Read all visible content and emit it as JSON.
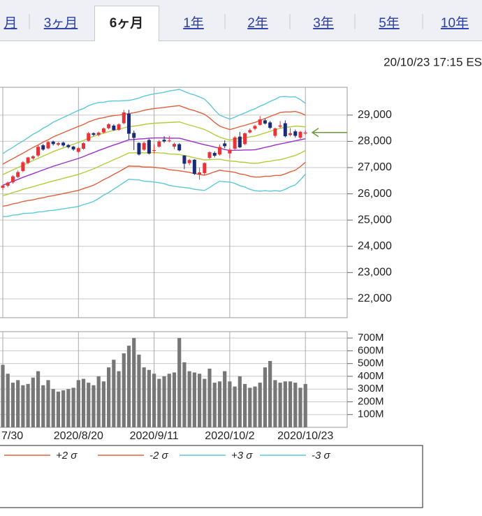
{
  "tabs": [
    "月",
    "3ヶ月",
    "6ヶ月",
    "1年",
    "2年",
    "3年",
    "5年",
    "10年"
  ],
  "selected_tab": 2,
  "timestamp": "20/10/23 17:15 ES",
  "chart_data": [
    {
      "type": "candlestick",
      "up_color": "#e8333a",
      "down_color": "#1a2b7a",
      "open": [
        26230,
        26310,
        26440,
        26640,
        26870,
        27180,
        27350,
        27460,
        27850,
        27730,
        27990,
        27870,
        27950,
        27860,
        27800,
        27600,
        27720,
        28020,
        28310,
        28240,
        28340,
        28500,
        28600,
        28440,
        28690,
        29050,
        28320,
        27940,
        27680,
        28050,
        27650,
        27800,
        28060,
        28010,
        27800,
        27890,
        27460,
        27170,
        27300,
        26730,
        26790,
        27370,
        27560,
        27500,
        27920,
        27540,
        27720,
        28180,
        27900,
        28340,
        28480,
        28630,
        28800,
        28720,
        28210,
        28560,
        28690,
        28240,
        28380,
        28140,
        28300
      ],
      "high": [
        26350,
        26470,
        26710,
        26890,
        27250,
        27410,
        27470,
        27850,
        27900,
        28010,
        28030,
        27970,
        27990,
        27900,
        27830,
        27780,
        27960,
        28360,
        28340,
        28370,
        28520,
        28690,
        28650,
        28690,
        29200,
        29200,
        28410,
        27960,
        27990,
        28100,
        27880,
        28050,
        28200,
        28210,
        27950,
        27930,
        27470,
        27330,
        27320,
        27000,
        27200,
        27620,
        27620,
        27880,
        28040,
        27750,
        28200,
        28360,
        28330,
        28490,
        28630,
        28960,
        28870,
        28780,
        28520,
        28770,
        28800,
        28500,
        28450,
        28400,
        28420
      ],
      "low": [
        26150,
        26250,
        26390,
        26600,
        26820,
        27130,
        27300,
        27410,
        27640,
        27700,
        27840,
        27820,
        27790,
        27730,
        27640,
        27560,
        27680,
        27990,
        28200,
        28190,
        28300,
        28460,
        28400,
        28400,
        28650,
        28070,
        27670,
        27460,
        27640,
        27500,
        27530,
        27760,
        27940,
        27960,
        27700,
        27620,
        26940,
        27090,
        26720,
        26540,
        26700,
        27330,
        27390,
        27460,
        27740,
        27360,
        27680,
        27740,
        27860,
        28300,
        28420,
        28600,
        28640,
        28460,
        28140,
        28500,
        28150,
        28190,
        28140,
        28090,
        28250
      ],
      "close": [
        26313,
        26428,
        26664,
        26828,
        27201,
        27386,
        27433,
        27791,
        27687,
        27976,
        27896,
        27931,
        27844,
        27778,
        27692,
        27739,
        27930,
        28308,
        28249,
        28332,
        28492,
        28653,
        28430,
        28646,
        29100,
        28292,
        28133,
        27500,
        27940,
        27535,
        27666,
        27993,
        27996,
        28032,
        27902,
        27657,
        27148,
        27288,
        26763,
        26815,
        27174,
        27584,
        27452,
        27782,
        27817,
        27683,
        28149,
        27773,
        28303,
        28426,
        28587,
        28838,
        28680,
        28515,
        28494,
        28606,
        28195,
        28309,
        28211,
        28364,
        28336
      ],
      "series": [
        {
          "name": "+2 σ",
          "color": "#e0603a",
          "values": [
            27130,
            27240,
            27340,
            27450,
            27550,
            27660,
            27770,
            27860,
            27970,
            28060,
            28170,
            28250,
            28330,
            28410,
            28490,
            28570,
            28640,
            28740,
            28810,
            28870,
            28900,
            28950,
            28980,
            29000,
            29030,
            29060,
            29090,
            29130,
            29180,
            29220,
            29250,
            29270,
            29290,
            29320,
            29340,
            29360,
            29290,
            29220,
            29170,
            29100,
            29030,
            28890,
            28720,
            28580,
            28510,
            28450,
            28500,
            28560,
            28610,
            28670,
            28720,
            28800,
            28870,
            28950,
            29020,
            29100,
            29120,
            29120,
            29140,
            29080,
            29000
          ]
        },
        {
          "name": "-2 σ",
          "color": "#e0603a",
          "values": [
            25530,
            25560,
            25620,
            25650,
            25710,
            25740,
            25770,
            25820,
            25850,
            25900,
            25930,
            25970,
            26010,
            26050,
            26090,
            26130,
            26200,
            26260,
            26330,
            26430,
            26540,
            26630,
            26740,
            26840,
            26950,
            27060,
            27050,
            27050,
            27020,
            27020,
            27010,
            26990,
            26970,
            26920,
            26900,
            26880,
            26850,
            26820,
            26770,
            26740,
            26710,
            26770,
            26840,
            26900,
            26870,
            26850,
            26820,
            26760,
            26730,
            26670,
            26640,
            26640,
            26670,
            26670,
            26700,
            26700,
            26760,
            26840,
            26900,
            27040,
            27200
          ]
        },
        {
          "name": "+3 σ",
          "color": "#5bc8d8",
          "values": [
            27530,
            27660,
            27770,
            27900,
            28010,
            28140,
            28270,
            28370,
            28500,
            28600,
            28730,
            28820,
            28910,
            29000,
            29090,
            29180,
            29250,
            29360,
            29430,
            29480,
            29490,
            29530,
            29540,
            29540,
            29550,
            29560,
            29600,
            29650,
            29720,
            29770,
            29810,
            29840,
            29870,
            29920,
            29950,
            29980,
            29900,
            29820,
            29770,
            29690,
            29610,
            29420,
            29190,
            29000,
            28920,
            28850,
            28920,
            29010,
            29080,
            29170,
            29240,
            29340,
            29420,
            29520,
            29600,
            29700,
            29710,
            29690,
            29700,
            29590,
            29450
          ]
        },
        {
          "name": "-3 σ",
          "color": "#5bc8d8",
          "values": [
            25130,
            25140,
            25190,
            25200,
            25250,
            25260,
            25270,
            25310,
            25320,
            25360,
            25370,
            25400,
            25430,
            25460,
            25490,
            25520,
            25590,
            25640,
            25710,
            25820,
            25950,
            26050,
            26180,
            26300,
            26430,
            26560,
            26540,
            26530,
            26480,
            26470,
            26450,
            26420,
            26390,
            26320,
            26290,
            26260,
            26240,
            26220,
            26170,
            26150,
            26130,
            26240,
            26370,
            26480,
            26460,
            26450,
            26400,
            26310,
            26260,
            26170,
            26120,
            26100,
            26120,
            26100,
            26120,
            26100,
            26170,
            26270,
            26340,
            26530,
            26750
          ]
        },
        {
          "color": "#b5cc3a",
          "values": [
            26730,
            26820,
            26910,
            27000,
            27090,
            27180,
            27270,
            27350,
            27440,
            27520,
            27610,
            27680,
            27750,
            27820,
            27890,
            27960,
            28030,
            28120,
            28190,
            28260,
            28310,
            28370,
            28420,
            28460,
            28510,
            28560,
            28580,
            28610,
            28640,
            28670,
            28690,
            28700,
            28710,
            28720,
            28730,
            28740,
            28680,
            28620,
            28570,
            28510,
            28450,
            28360,
            28250,
            28160,
            28100,
            28050,
            28080,
            28110,
            28140,
            28170,
            28200,
            28260,
            28320,
            28380,
            28440,
            28500,
            28530,
            28550,
            28580,
            28570,
            28550
          ]
        },
        {
          "color": "#9a2fd0",
          "values": [
            26330,
            26400,
            26480,
            26550,
            26630,
            26700,
            26770,
            26840,
            26910,
            26980,
            27050,
            27110,
            27170,
            27230,
            27290,
            27350,
            27420,
            27500,
            27570,
            27650,
            27720,
            27790,
            27860,
            27920,
            27990,
            28060,
            28070,
            28090,
            28100,
            28120,
            28130,
            28130,
            28130,
            28120,
            28120,
            28120,
            28070,
            28020,
            27970,
            27920,
            27870,
            27830,
            27780,
            27740,
            27690,
            27650,
            27660,
            27660,
            27670,
            27670,
            27680,
            27720,
            27770,
            27810,
            27860,
            27900,
            27940,
            27980,
            28020,
            28060,
            28100
          ]
        },
        {
          "color": "#b5cc3a",
          "values": [
            25930,
            25980,
            26050,
            26100,
            26170,
            26220,
            26270,
            26330,
            26380,
            26440,
            26490,
            26540,
            26590,
            26640,
            26690,
            26740,
            26810,
            26880,
            26950,
            27040,
            27130,
            27210,
            27300,
            27380,
            27470,
            27560,
            27560,
            27570,
            27560,
            27570,
            27570,
            27560,
            27550,
            27520,
            27510,
            27500,
            27460,
            27420,
            27370,
            27330,
            27290,
            27300,
            27310,
            27320,
            27280,
            27250,
            27240,
            27210,
            27200,
            27170,
            27160,
            27180,
            27220,
            27240,
            27280,
            27300,
            27350,
            27410,
            27460,
            27550,
            27650
          ]
        }
      ],
      "ylim": [
        21280,
        30060
      ],
      "yticks": [
        {
          "value": 29000,
          "label": "29,000"
        },
        {
          "value": 28000,
          "label": "28,000"
        },
        {
          "value": 27000,
          "label": "27,000"
        },
        {
          "value": 26000,
          "label": "26,000"
        },
        {
          "value": 25000,
          "label": "25,000"
        },
        {
          "value": 24000,
          "label": "24,000"
        },
        {
          "value": 23000,
          "label": "23,000"
        },
        {
          "value": 22000,
          "label": "22,000"
        }
      ],
      "grid": true
    },
    {
      "type": "bar",
      "color": "#777777",
      "categories": [
        "7/30",
        null,
        null,
        null,
        null,
        null,
        null,
        null,
        null,
        null,
        null,
        null,
        null,
        null,
        null,
        "2020/8/20",
        null,
        null,
        null,
        null,
        null,
        null,
        null,
        null,
        null,
        null,
        null,
        null,
        null,
        null,
        "2020/9/11",
        null,
        null,
        null,
        null,
        null,
        null,
        null,
        null,
        null,
        null,
        null,
        null,
        null,
        null,
        "2020/10/2",
        null,
        null,
        null,
        null,
        null,
        null,
        null,
        null,
        null,
        null,
        null,
        null,
        null,
        null,
        "2020/10/23"
      ],
      "values": [
        490,
        420,
        350,
        370,
        330,
        340,
        390,
        440,
        330,
        370,
        300,
        280,
        290,
        300,
        310,
        370,
        380,
        350,
        330,
        400,
        360,
        470,
        530,
        440,
        580,
        640,
        700,
        570,
        470,
        450,
        420,
        380,
        400,
        420,
        430,
        700,
        510,
        440,
        430,
        420,
        380,
        460,
        350,
        360,
        440,
        360,
        320,
        400,
        340,
        310,
        320,
        350,
        470,
        520,
        370,
        350,
        360,
        360,
        350,
        310,
        340
      ],
      "ylim": [
        0,
        750
      ],
      "yticks": [
        {
          "value": 700,
          "label": "700M"
        },
        {
          "value": 600,
          "label": "600M"
        },
        {
          "value": 500,
          "label": "500M"
        },
        {
          "value": 400,
          "label": "400M"
        },
        {
          "value": 300,
          "label": "300M"
        },
        {
          "value": 200,
          "label": "200M"
        },
        {
          "value": 100,
          "label": "100M"
        }
      ],
      "grid": true
    }
  ]
}
